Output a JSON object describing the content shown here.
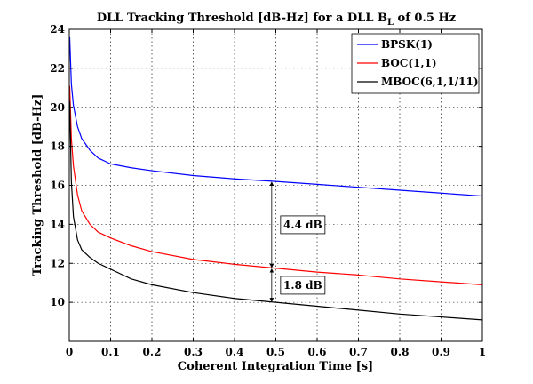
{
  "chart_data": {
    "type": "line",
    "title": {
      "main": "DLL Tracking Threshold [dB-Hz] for a DLL B",
      "subscript": "L",
      "suffix": " of 0.5 Hz"
    },
    "xlabel": "Coherent Integration Time [s]",
    "ylabel": "Tracking Threshold [dB-Hz]",
    "xlim": [
      0,
      1
    ],
    "ylim": [
      8,
      24
    ],
    "xticks": [
      0,
      0.1,
      0.2,
      0.3,
      0.4,
      0.5,
      0.6,
      0.7,
      0.8,
      0.9,
      1
    ],
    "xtick_labels": [
      "0",
      "0.1",
      "0.2",
      "0.3",
      "0.4",
      "0.5",
      "0.6",
      "0.7",
      "0.8",
      "0.9",
      "1"
    ],
    "yticks": [
      10,
      12,
      14,
      16,
      18,
      20,
      22,
      24
    ],
    "ytick_labels": [
      "10",
      "12",
      "14",
      "16",
      "18",
      "20",
      "22",
      "24"
    ],
    "grid": true,
    "legend_position": "top-right",
    "x": [
      0.001,
      0.005,
      0.01,
      0.02,
      0.03,
      0.05,
      0.07,
      0.1,
      0.15,
      0.2,
      0.3,
      0.4,
      0.5,
      0.6,
      0.7,
      0.8,
      0.9,
      1.0
    ],
    "series": [
      {
        "name": "BPSK(1)",
        "color": "#0000ff",
        "values": [
          23.6,
          21.2,
          20.1,
          19.0,
          18.4,
          17.8,
          17.4,
          17.1,
          16.9,
          16.75,
          16.5,
          16.33,
          16.2,
          16.05,
          15.9,
          15.75,
          15.6,
          15.45
        ]
      },
      {
        "name": "BOC(1,1)",
        "color": "#ff0000",
        "values": [
          21.1,
          18.4,
          17.0,
          15.5,
          14.7,
          14.0,
          13.6,
          13.3,
          12.9,
          12.6,
          12.2,
          11.95,
          11.75,
          11.55,
          11.4,
          11.2,
          11.05,
          10.9
        ]
      },
      {
        "name": "MBOC(6,1,1/11)",
        "color": "#000000",
        "values": [
          20.3,
          16.2,
          14.4,
          13.2,
          12.7,
          12.3,
          12.0,
          11.7,
          11.2,
          10.9,
          10.5,
          10.2,
          10.0,
          9.8,
          9.6,
          9.4,
          9.25,
          9.1
        ]
      }
    ],
    "annotations": [
      {
        "text": "4.4 dB",
        "x": 0.49,
        "y_from": 11.75,
        "y_to": 16.2
      },
      {
        "text": "1.8 dB",
        "x": 0.49,
        "y_from": 10.0,
        "y_to": 11.75
      }
    ]
  }
}
